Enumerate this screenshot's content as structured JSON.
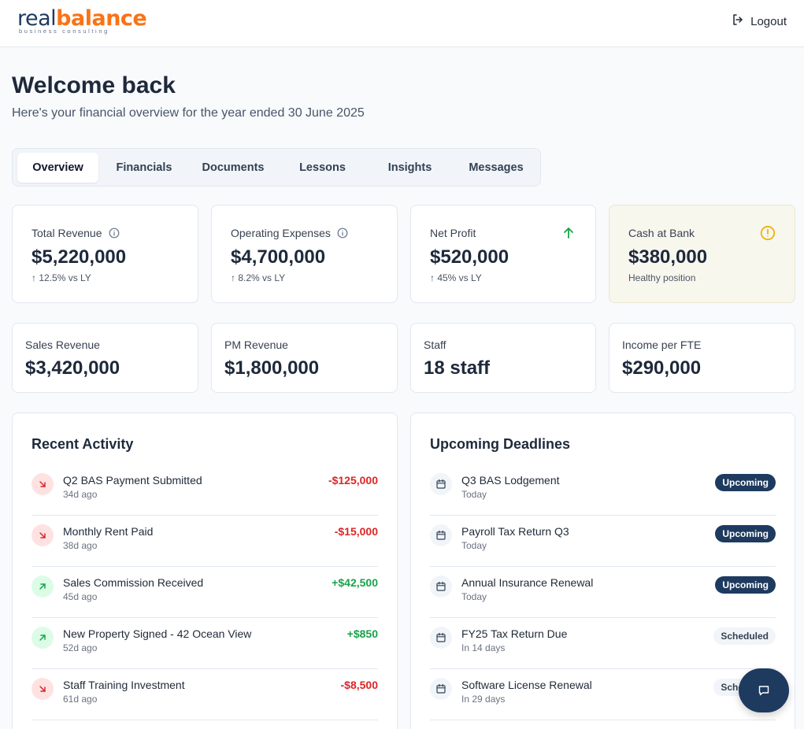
{
  "brand": {
    "logo_part1": "real",
    "logo_part2": "balance",
    "tagline": "business consulting"
  },
  "header": {
    "logout_label": "Logout"
  },
  "welcome": {
    "title": "Welcome back",
    "subtitle": "Here's your financial overview for the year ended 30 June 2025"
  },
  "tabs": [
    {
      "label": "Overview",
      "active": true
    },
    {
      "label": "Financials"
    },
    {
      "label": "Documents"
    },
    {
      "label": "Lessons"
    },
    {
      "label": "Insights"
    },
    {
      "label": "Messages"
    }
  ],
  "kpis": [
    {
      "label": "Total Revenue",
      "value": "$5,220,000",
      "sub": "↑ 12.5% vs LY",
      "icon": "info-icon"
    },
    {
      "label": "Operating Expenses",
      "value": "$4,700,000",
      "sub": "↑ 8.2% vs LY",
      "icon": "info-icon"
    },
    {
      "label": "Net Profit",
      "value": "$520,000",
      "sub": "↑ 45% vs LY",
      "icon": "arrow-up-icon"
    },
    {
      "label": "Cash at Bank",
      "value": "$380,000",
      "sub": "Healthy position",
      "icon": "alert-circle-icon"
    }
  ],
  "stats": [
    {
      "label": "Sales Revenue",
      "value": "$3,420,000"
    },
    {
      "label": "PM Revenue",
      "value": "$1,800,000"
    },
    {
      "label": "Staff",
      "value": "18 staff"
    },
    {
      "label": "Income per FTE",
      "value": "$290,000"
    }
  ],
  "recent_activity": {
    "title": "Recent Activity",
    "items": [
      {
        "title": "Q2 BAS Payment Submitted",
        "date": "34d ago",
        "amount": "-$125,000",
        "direction": "down"
      },
      {
        "title": "Monthly Rent Paid",
        "date": "38d ago",
        "amount": "-$15,000",
        "direction": "down"
      },
      {
        "title": "Sales Commission Received",
        "date": "45d ago",
        "amount": "+$42,500",
        "direction": "up"
      },
      {
        "title": "New Property Signed - 42 Ocean View",
        "date": "52d ago",
        "amount": "+$850",
        "direction": "up"
      },
      {
        "title": "Staff Training Investment",
        "date": "61d ago",
        "amount": "-$8,500",
        "direction": "down"
      }
    ]
  },
  "upcoming_deadlines": {
    "title": "Upcoming Deadlines",
    "items": [
      {
        "title": "Q3 BAS Lodgement",
        "date": "Today",
        "status": "Upcoming"
      },
      {
        "title": "Payroll Tax Return Q3",
        "date": "Today",
        "status": "Upcoming"
      },
      {
        "title": "Annual Insurance Renewal",
        "date": "Today",
        "status": "Upcoming"
      },
      {
        "title": "FY25 Tax Return Due",
        "date": "In 14 days",
        "status": "Scheduled"
      },
      {
        "title": "Software License Renewal",
        "date": "In 29 days",
        "status": "Scheduled"
      }
    ]
  },
  "colors": {
    "brand_navy": "#1e3a5f",
    "brand_orange": "#f97316",
    "negative": "#dc2626",
    "positive": "#16a34a",
    "warning": "#eab308"
  }
}
